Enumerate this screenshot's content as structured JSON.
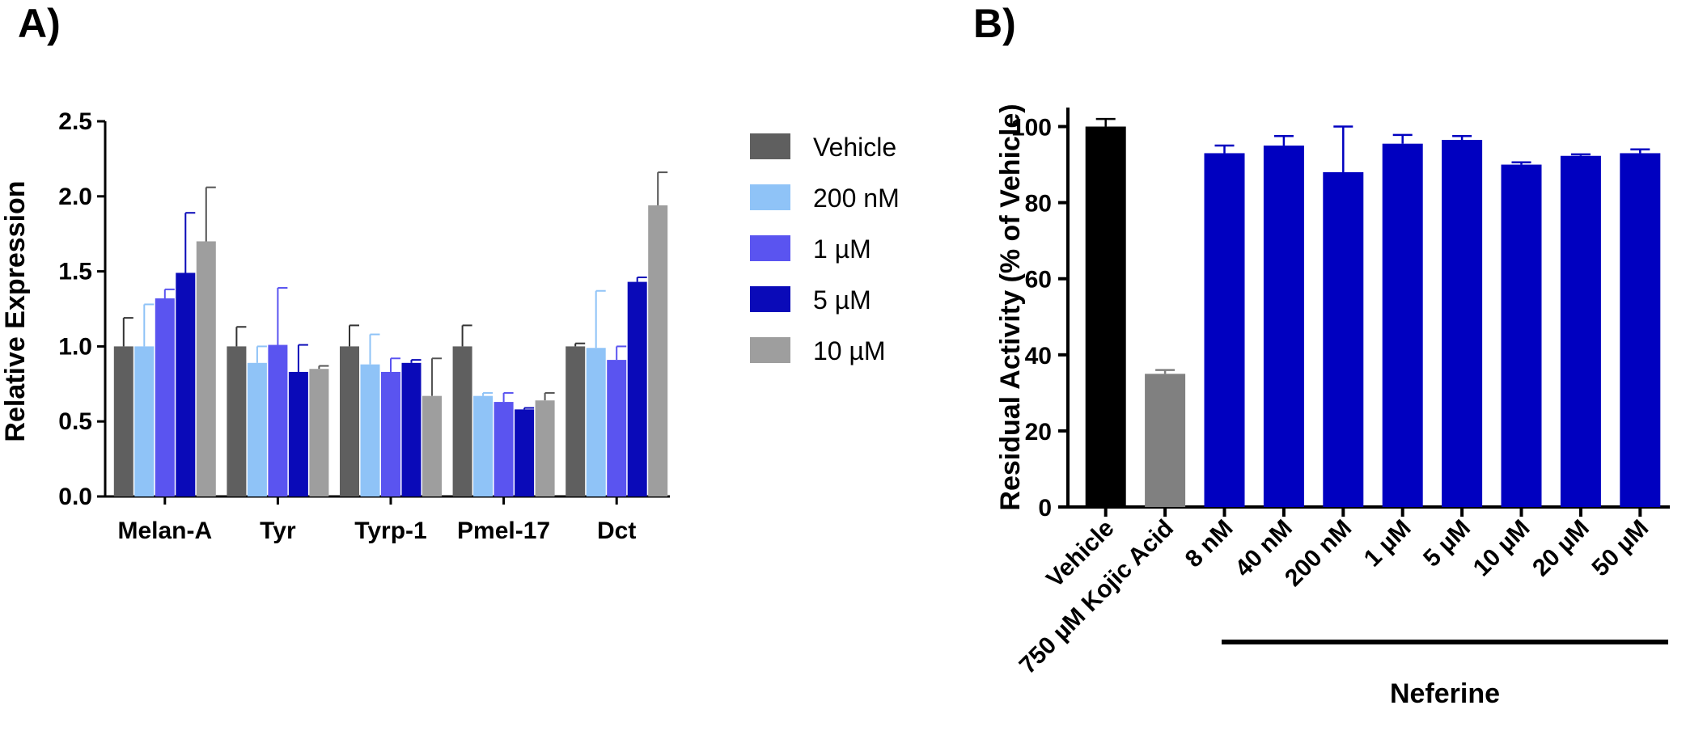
{
  "panels": {
    "a_label": "A)",
    "b_label": "B)"
  },
  "chart_data": [
    {
      "type": "bar",
      "panel": "A)",
      "ylabel": "Relative  Expression",
      "ylim": [
        0,
        2.5
      ],
      "yticks": [
        "0.0",
        "0.5",
        "1.0",
        "1.5",
        "2.0",
        "2.5"
      ],
      "categories": [
        "Melan-A",
        "Tyr",
        "Tyrp-1",
        "Pmel-17",
        "Dct"
      ],
      "legend_position": "right",
      "series": [
        {
          "name": "Vehicle",
          "color": "#5f5f5f",
          "values": [
            1.0,
            1.0,
            1.0,
            1.0,
            1.0
          ],
          "errors": [
            0.19,
            0.13,
            0.14,
            0.14,
            0.02
          ]
        },
        {
          "name": "200 nM",
          "color": "#8fc3f7",
          "values": [
            1.0,
            0.89,
            0.88,
            0.67,
            0.99
          ],
          "errors": [
            0.28,
            0.11,
            0.2,
            0.02,
            0.38
          ]
        },
        {
          "name": "1 µM",
          "color": "#5a54f0",
          "values": [
            1.32,
            1.01,
            0.83,
            0.63,
            0.91
          ],
          "errors": [
            0.06,
            0.38,
            0.09,
            0.06,
            0.09
          ]
        },
        {
          "name": "5 µM",
          "color": "#0a0ab8",
          "values": [
            1.49,
            0.83,
            0.89,
            0.58,
            1.43
          ],
          "errors": [
            0.4,
            0.18,
            0.02,
            0.01,
            0.03
          ]
        },
        {
          "name": "10 µM",
          "color": "#9e9e9e",
          "values": [
            1.7,
            0.85,
            0.67,
            0.64,
            1.94
          ],
          "errors": [
            0.36,
            0.02,
            0.25,
            0.05,
            0.22
          ]
        }
      ]
    },
    {
      "type": "bar",
      "panel": "B)",
      "ylabel": "Residual Activity (% of Vehicle)",
      "ylim": [
        0,
        105
      ],
      "yticks": [
        "0",
        "20",
        "40",
        "60",
        "80",
        "100"
      ],
      "categories": [
        "Vehicle",
        "750 µM Kojic Acid",
        "8 nM",
        "40 nM",
        "200 nM",
        "1 µM",
        "5 µM",
        "10 µM",
        "20 µM",
        "50 µM"
      ],
      "group_label": "Neferine",
      "values": [
        100,
        35,
        93,
        95,
        88,
        95.5,
        96.5,
        90,
        92.3,
        93
      ],
      "errors": [
        2,
        1,
        2,
        2.5,
        12,
        2.3,
        1,
        0.6,
        0.4,
        1
      ],
      "colors": [
        "#000000",
        "#808080",
        "#0000c0",
        "#0000c0",
        "#0000c0",
        "#0000c0",
        "#0000c0",
        "#0000c0",
        "#0000c0",
        "#0000c0"
      ],
      "error_colors": [
        "#000000",
        "#808080",
        "#0000c0",
        "#0000c0",
        "#0000c0",
        "#0000c0",
        "#0000c0",
        "#0000c0",
        "#0000c0",
        "#0000c0"
      ]
    }
  ]
}
